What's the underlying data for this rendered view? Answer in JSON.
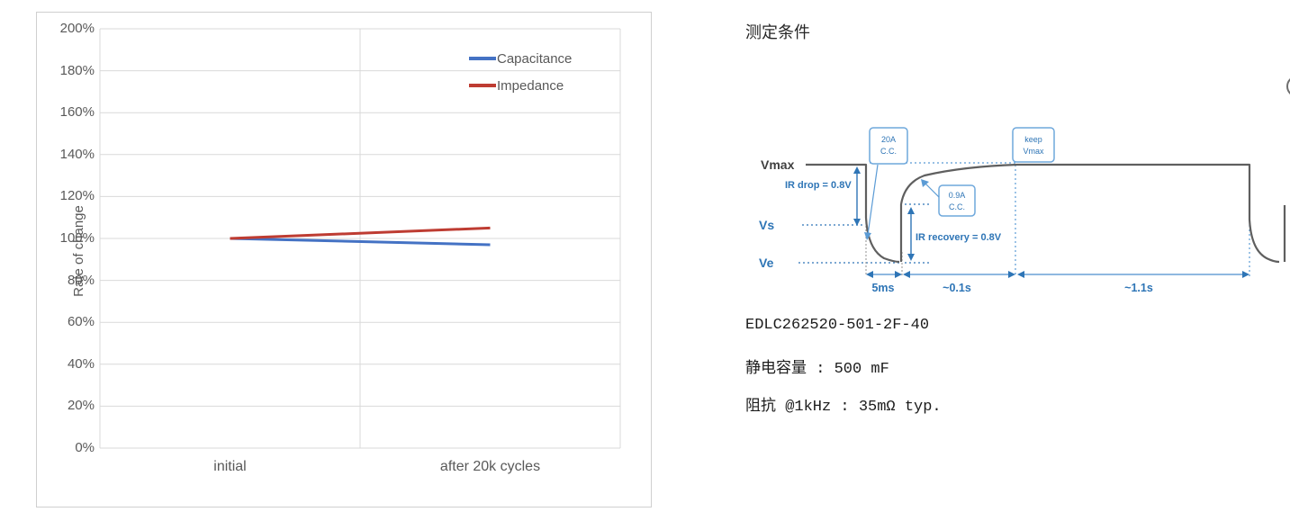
{
  "chart_data": {
    "type": "line",
    "categories": [
      "initial",
      "after 20k cycles"
    ],
    "series": [
      {
        "name": "Capacitance",
        "color": "#4472C4",
        "values": [
          100,
          97
        ]
      },
      {
        "name": "Impedance",
        "color": "#BE3C32",
        "values": [
          100,
          105
        ]
      }
    ],
    "title": "",
    "xlabel": "",
    "ylabel": "Rate of change",
    "ylim": [
      0,
      200
    ],
    "ytick_step": 20,
    "grid": true,
    "legend_position": "top-right",
    "gridline_color": "#d9d9d9",
    "tick_text_color": "#595959"
  },
  "measurement": {
    "title": "测定条件",
    "waveform": {
      "level_labels": {
        "vmax": "Vmax",
        "vs": "Vs",
        "ve": "Ve"
      },
      "annotations": {
        "ir_drop": "IR drop = 0.8V",
        "ir_recovery": "IR recovery = 0.8V"
      },
      "boxes": {
        "discharge": [
          "20A",
          "C.C."
        ],
        "recharge": [
          "0.9A",
          "C.C."
        ],
        "keep": [
          "keep",
          "Vmax"
        ]
      },
      "time_labels": {
        "t1": "5ms",
        "t2": "~0.1s",
        "t3": "~1.1s"
      },
      "colors": {
        "trace": "#5f5f5f",
        "annotation_blue": "#2E75B6",
        "light_blue": "#5B9BD5",
        "timeline_blue": "#8FB8E0"
      }
    },
    "specs": {
      "part_number": "EDLC262520-501-2F-40",
      "capacitance": "静电容量 : 500 mF",
      "impedance": "阻抗 @1kHz : 35mΩ typ."
    }
  }
}
